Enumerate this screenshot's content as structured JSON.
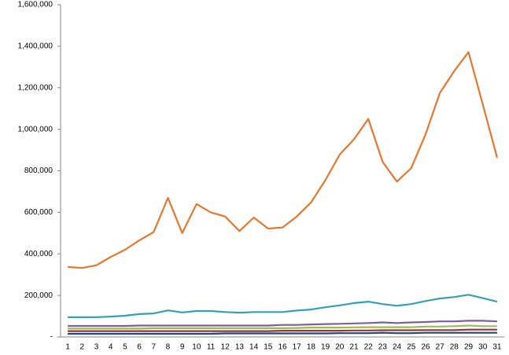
{
  "chart_data": {
    "type": "line",
    "categories": [
      "1",
      "2",
      "3",
      "4",
      "5",
      "6",
      "7",
      "8",
      "9",
      "10",
      "11",
      "12",
      "13",
      "14",
      "15",
      "16",
      "17",
      "18",
      "19",
      "20",
      "21",
      "22",
      "23",
      "24",
      "25",
      "26",
      "27",
      "28",
      "29",
      "30",
      "31"
    ],
    "series": [
      {
        "color": "#e3782f",
        "values": [
          337000,
          332000,
          345000,
          385000,
          420000,
          465000,
          505000,
          670000,
          500000,
          640000,
          600000,
          580000,
          510000,
          575000,
          522000,
          527000,
          580000,
          648000,
          755000,
          878000,
          952000,
          1050000,
          843000,
          748000,
          813000,
          975000,
          1175000,
          1280000,
          1372000,
          1120000,
          863000
        ]
      },
      {
        "color": "#34a0b6",
        "values": [
          95000,
          95000,
          95000,
          98000,
          102000,
          110000,
          113000,
          128000,
          118000,
          125000,
          125000,
          120000,
          117000,
          120000,
          120000,
          120000,
          127000,
          132000,
          143000,
          152000,
          163000,
          170000,
          158000,
          150000,
          158000,
          173000,
          185000,
          192000,
          203000,
          187000,
          170000
        ]
      },
      {
        "color": "#7f5f9a",
        "values": [
          53000,
          53000,
          53000,
          53000,
          53000,
          55000,
          55000,
          55000,
          55000,
          55000,
          55000,
          55000,
          55000,
          55000,
          55000,
          58000,
          58000,
          60000,
          62000,
          63000,
          65000,
          67000,
          70000,
          67000,
          70000,
          72000,
          75000,
          75000,
          78000,
          78000,
          75000
        ]
      },
      {
        "color": "#9bbb59",
        "values": [
          40000,
          40000,
          40000,
          40000,
          40000,
          40000,
          42000,
          42000,
          42000,
          42000,
          42000,
          42000,
          42000,
          42000,
          42000,
          42000,
          43000,
          45000,
          45000,
          45000,
          46000,
          47000,
          47000,
          47000,
          47000,
          50000,
          50000,
          52000,
          55000,
          52000,
          52000
        ]
      },
      {
        "color": "#943634",
        "values": [
          28000,
          28000,
          28000,
          28000,
          28000,
          28000,
          28000,
          28000,
          28000,
          28000,
          28000,
          28000,
          28000,
          28000,
          28000,
          30000,
          30000,
          30000,
          30000,
          30000,
          31000,
          31000,
          32000,
          32000,
          32000,
          33000,
          33000,
          33000,
          35000,
          35000,
          35000
        ]
      },
      {
        "color": "#1f497d",
        "values": [
          15000,
          15000,
          15000,
          15000,
          15000,
          15000,
          15000,
          15000,
          15000,
          15000,
          15000,
          17000,
          17000,
          17000,
          17000,
          17000,
          17000,
          17000,
          17000,
          18000,
          18000,
          18000,
          20000,
          18000,
          18000,
          20000,
          20000,
          20000,
          20000,
          20000,
          20000
        ]
      }
    ],
    "ylim": [
      0,
      1600000
    ],
    "yticks": [
      {
        "value": 0,
        "label": "-"
      },
      {
        "value": 200000,
        "label": "200,000"
      },
      {
        "value": 400000,
        "label": "400,000"
      },
      {
        "value": 600000,
        "label": "600,000"
      },
      {
        "value": 800000,
        "label": "800,000"
      },
      {
        "value": 1000000,
        "label": "1,000,000"
      },
      {
        "value": 1200000,
        "label": "1,200,000"
      },
      {
        "value": 1400000,
        "label": "1,400,000"
      },
      {
        "value": 1600000,
        "label": "1,600,000"
      }
    ],
    "grid": false
  }
}
